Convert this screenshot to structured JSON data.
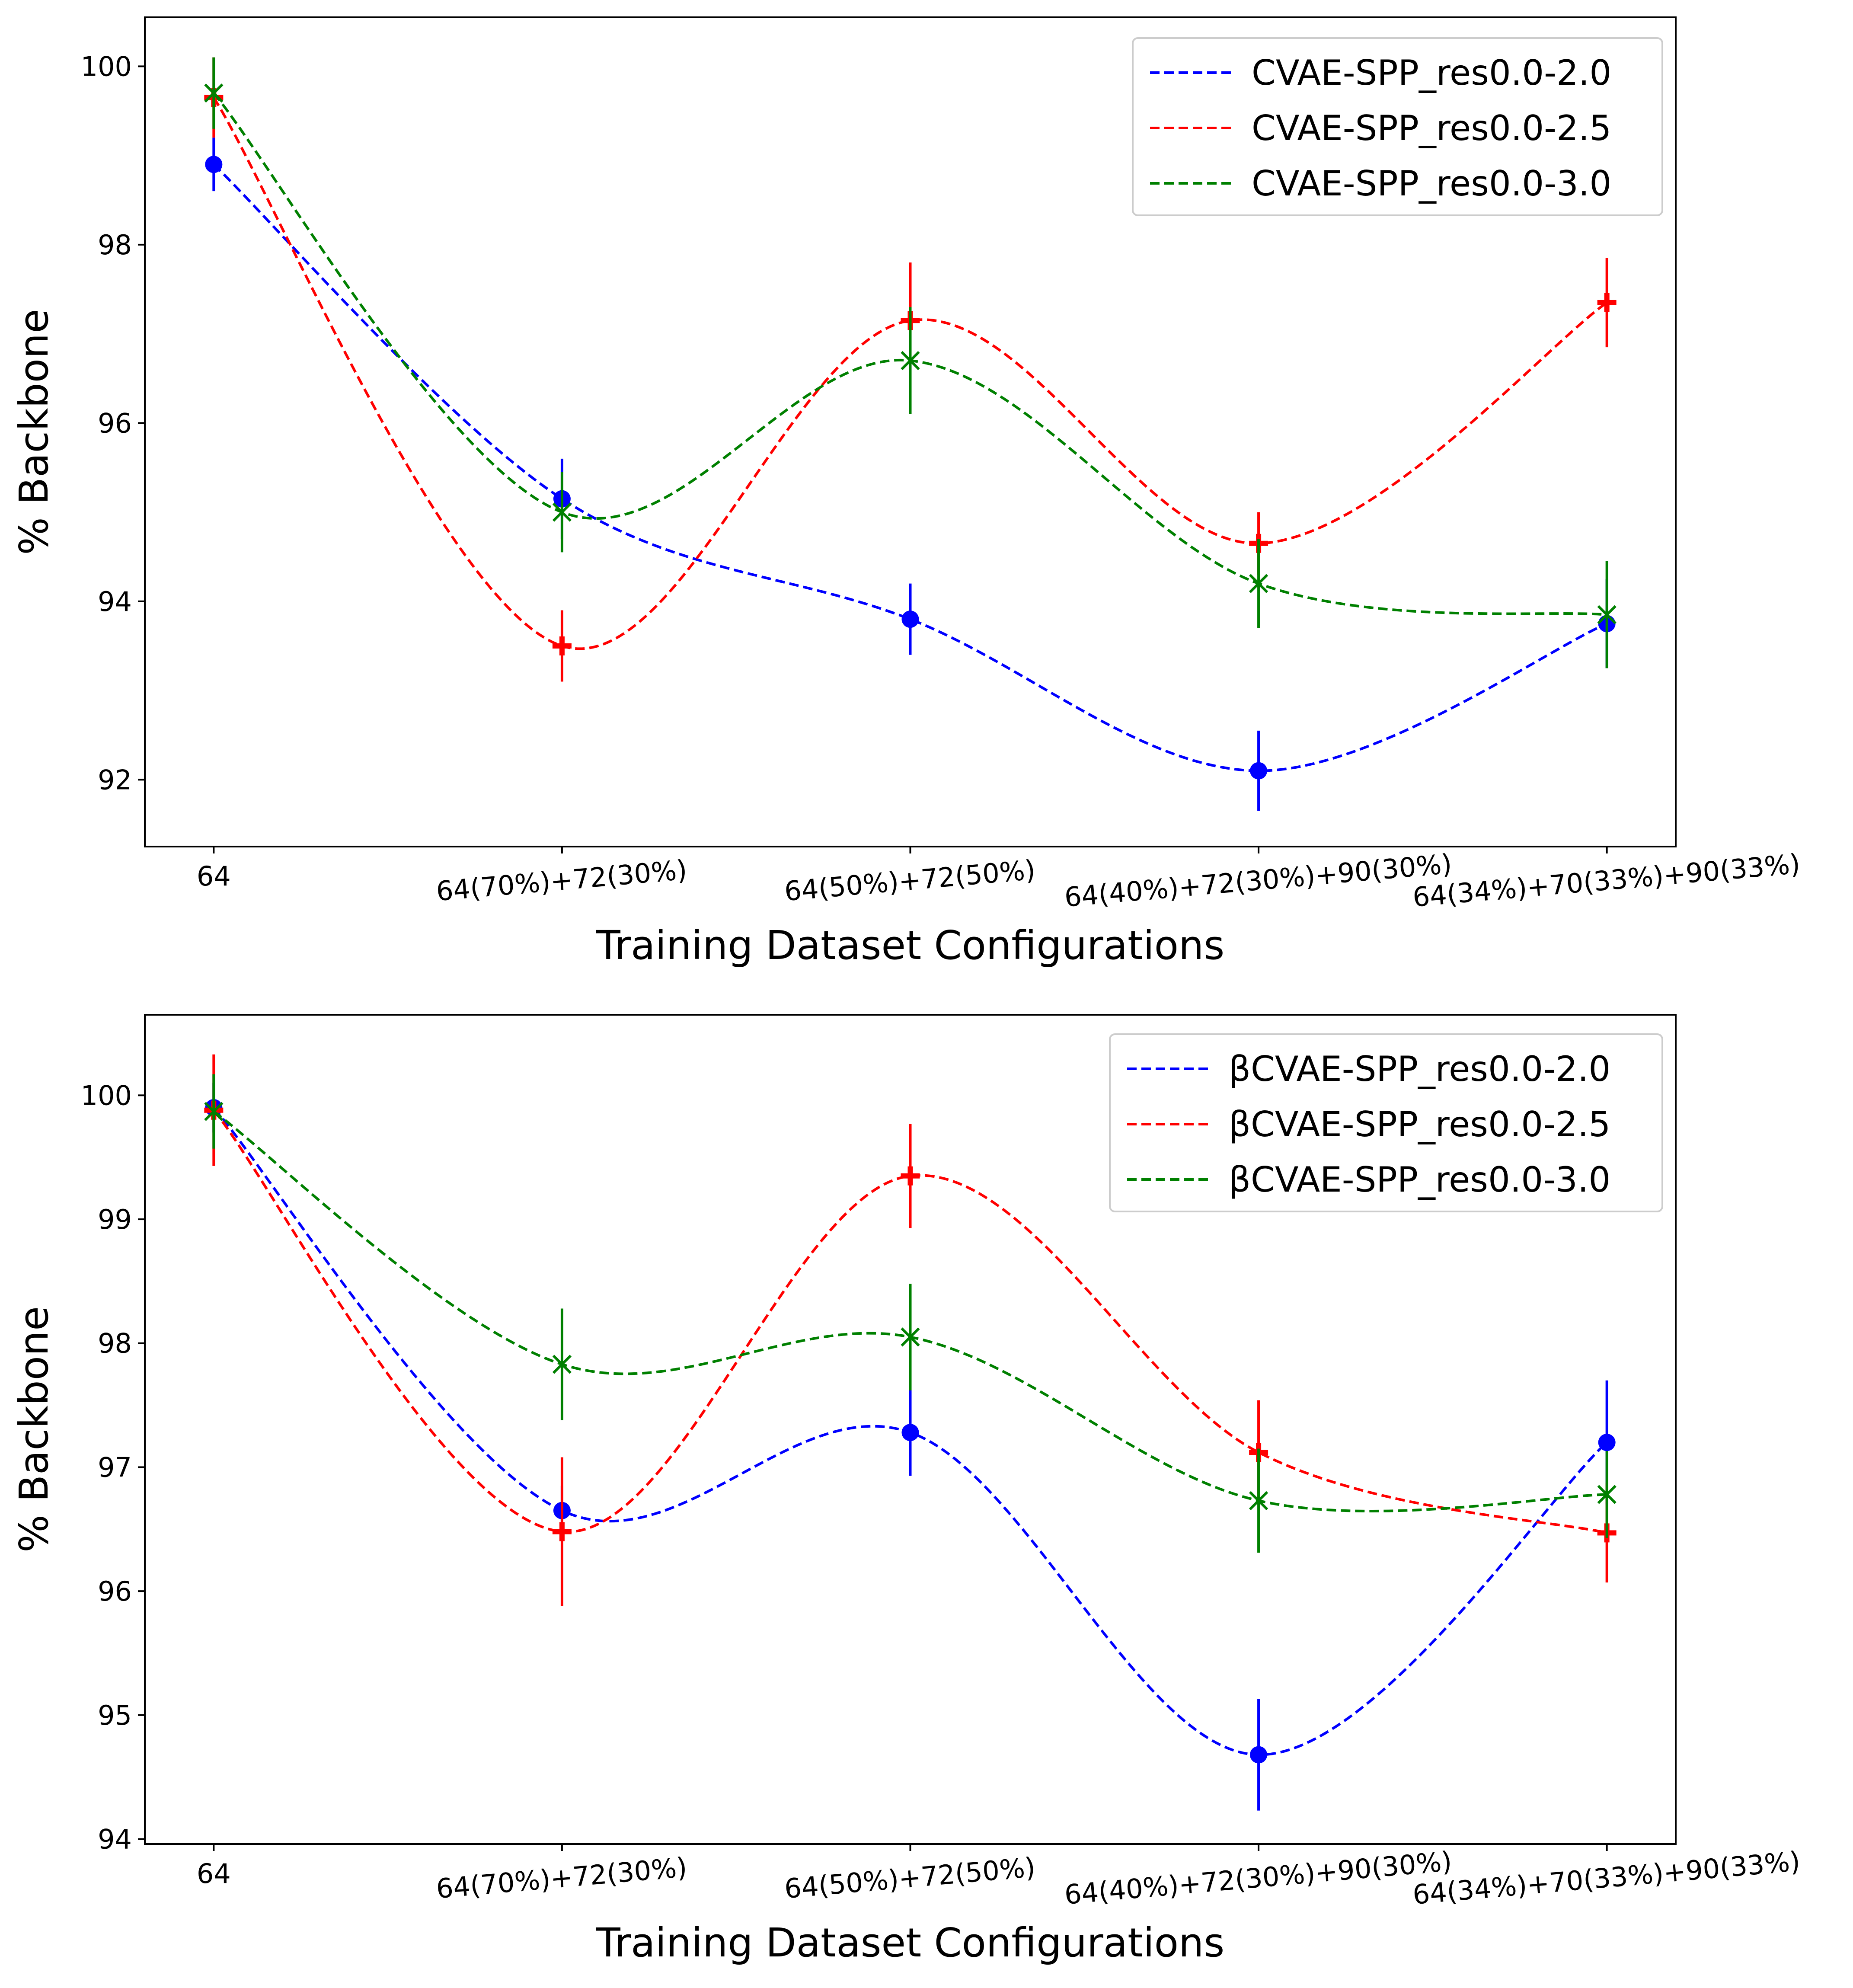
{
  "chart_data": [
    {
      "type": "line",
      "categories": [
        "64",
        "64(70%)+72(30%)",
        "64(50%)+72(50%)",
        "64(40%)+72(30%)+90(30%)",
        "64(34%)+70(33%)+90(33%)"
      ],
      "xlabel": "Training Dataset Configurations",
      "ylabel": "% Backbone",
      "ylim": [
        91.25,
        100.55
      ],
      "yticks": [
        92,
        94,
        96,
        98,
        100
      ],
      "grid": false,
      "legend_position": "top-right",
      "series": [
        {
          "name": "CVAE-SPP_res0.0-2.0",
          "color": "#0000ff",
          "marker": "circle",
          "values": [
            98.9,
            95.15,
            93.8,
            92.1,
            93.75
          ],
          "errors": [
            0.3,
            0.45,
            0.4,
            0.45,
            0.5
          ]
        },
        {
          "name": "CVAE-SPP_res0.0-2.5",
          "color": "#ff0000",
          "marker": "plus",
          "values": [
            99.65,
            93.5,
            97.15,
            94.65,
            97.35
          ],
          "errors": [
            0.45,
            0.4,
            0.65,
            0.35,
            0.5
          ]
        },
        {
          "name": "CVAE-SPP_res0.0-3.0",
          "color": "#008000",
          "marker": "x",
          "values": [
            99.7,
            95.0,
            96.7,
            94.2,
            93.85
          ],
          "errors": [
            0.4,
            0.45,
            0.6,
            0.5,
            0.6
          ]
        }
      ]
    },
    {
      "type": "line",
      "categories": [
        "64",
        "64(70%)+72(30%)",
        "64(50%)+72(50%)",
        "64(40%)+72(30%)+90(30%)",
        "64(34%)+70(33%)+90(33%)"
      ],
      "xlabel": "Training Dataset Configurations",
      "ylabel": "% Backbone",
      "ylim": [
        93.96,
        100.65
      ],
      "yticks": [
        94,
        95,
        96,
        97,
        98,
        99,
        100
      ],
      "grid": false,
      "legend_position": "top-right",
      "series": [
        {
          "name": "βCVAE-SPP_res0.0-2.0",
          "color": "#0000ff",
          "marker": "circle",
          "values": [
            99.9,
            96.65,
            97.28,
            94.68,
            97.2
          ],
          "errors": [
            0.2,
            0.2,
            0.35,
            0.45,
            0.5
          ]
        },
        {
          "name": "βCVAE-SPP_res0.0-2.5",
          "color": "#ff0000",
          "marker": "plus",
          "values": [
            99.88,
            96.48,
            99.35,
            97.12,
            96.47
          ],
          "errors": [
            0.45,
            0.6,
            0.42,
            0.42,
            0.4
          ]
        },
        {
          "name": "βCVAE-SPP_res0.0-3.0",
          "color": "#008000",
          "marker": "x",
          "values": [
            99.87,
            97.83,
            98.05,
            96.73,
            96.78
          ],
          "errors": [
            0.3,
            0.45,
            0.43,
            0.42,
            0.35
          ]
        }
      ]
    }
  ]
}
